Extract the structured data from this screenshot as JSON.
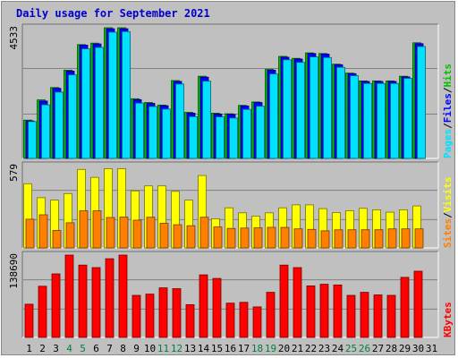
{
  "chart_data": {
    "type": "bar",
    "title": "Daily usage for September 2021",
    "categories": [
      "1",
      "2",
      "3",
      "4",
      "5",
      "6",
      "7",
      "8",
      "9",
      "10",
      "11",
      "12",
      "13",
      "14",
      "15",
      "16",
      "17",
      "18",
      "19",
      "20",
      "21",
      "22",
      "23",
      "24",
      "25",
      "26",
      "27",
      "28",
      "29",
      "30",
      "31"
    ],
    "weekend_days": [
      "4",
      "5",
      "11",
      "12",
      "18",
      "19",
      "25",
      "26"
    ],
    "colors": {
      "hits": "#00c000",
      "files": "#0000ff",
      "pages": "#00e0ff",
      "visits": "#ffff00",
      "sites": "#ff8000",
      "kbytes": "#ff0000",
      "weekday_label": "#000000",
      "weekend_label": "#008040",
      "title": "#0000cc",
      "panel_bg": "#c0c0c0"
    },
    "panels": [
      {
        "id": "usage",
        "ymax_label": "4533",
        "ylim": [
          0,
          4533
        ],
        "series": [
          {
            "name": "Hits",
            "color_key": "hits",
            "values": [
              1330,
              2030,
              2460,
              3060,
              3950,
              4000,
              4533,
              4533,
              2070,
              1940,
              1850,
              2700,
              1600,
              2850,
              1570,
              1550,
              1840,
              1960,
              3090,
              3540,
              3470,
              3660,
              3640,
              3270,
              2960,
              2690,
              2690,
              2690,
              2850,
              4010,
              null
            ]
          },
          {
            "name": "Files",
            "color_key": "files",
            "values": [
              1300,
              1990,
              2430,
              3030,
              3930,
              3970,
              4500,
              4500,
              2040,
              1910,
              1830,
              2670,
              1570,
              2820,
              1540,
              1530,
              1820,
              1940,
              3060,
              3510,
              3450,
              3640,
              3620,
              3250,
              2940,
              2670,
              2670,
              2670,
              2830,
              3980,
              null
            ]
          },
          {
            "name": "Pages",
            "color_key": "pages",
            "values": [
              1280,
              1860,
              2300,
              2900,
              3800,
              3850,
              4380,
              4400,
              1920,
              1800,
              1710,
              2580,
              1450,
              2680,
              1440,
              1400,
              1700,
              1810,
              2930,
              3420,
              3330,
              3520,
              3500,
              3160,
              2870,
              2600,
              2600,
              2600,
              2780,
              3880,
              null
            ]
          }
        ],
        "legend_words": [
          {
            "text": "Pages",
            "color_key": "pages"
          },
          {
            "text": "Files",
            "color_key": "files"
          },
          {
            "text": "Hits",
            "color_key": "hits"
          }
        ],
        "legend_sep": "/"
      },
      {
        "id": "visits",
        "ymax_label": "579",
        "ylim": [
          0,
          579
        ],
        "series": [
          {
            "name": "Visits",
            "color_key": "visits",
            "values": [
              451,
              353,
              336,
              382,
              552,
              496,
              557,
              557,
              401,
              436,
              436,
              398,
              336,
              509,
              205,
              282,
              247,
              224,
              247,
              282,
              303,
              303,
              276,
              249,
              262,
              278,
              268,
              251,
              268,
              295,
              null
            ]
          },
          {
            "name": "Sites",
            "color_key": "sites",
            "values": [
              202,
              233,
              123,
              177,
              261,
              261,
              214,
              217,
              195,
              216,
              173,
              163,
              156,
              216,
              147,
              137,
              140,
              141,
              145,
              144,
              134,
              130,
              120,
              127,
              128,
              128,
              128,
              134,
              134,
              134,
              null
            ]
          }
        ],
        "legend_words": [
          {
            "text": "Sites",
            "color_key": "sites"
          },
          {
            "text": "Visits",
            "color_key": "visits"
          }
        ],
        "legend_sep": "/"
      },
      {
        "id": "kbytes",
        "ymax_label": "138690",
        "ylim": [
          0,
          138690
        ],
        "series": [
          {
            "name": "KBytes",
            "color_key": "kbytes",
            "values": [
              55900,
              86200,
              107000,
              138690,
              121800,
              117600,
              132500,
              138690,
              70900,
              73000,
              83500,
              82100,
              55200,
              105300,
              99400,
              57700,
              59100,
              51400,
              76000,
              121800,
              117600,
              86800,
              89600,
              88300,
              70900,
              76000,
              71600,
              70900,
              101200,
              111500,
              null
            ]
          }
        ],
        "legend_words": [
          {
            "text": "KBytes",
            "color_key": "kbytes"
          }
        ],
        "legend_sep": ""
      }
    ]
  }
}
